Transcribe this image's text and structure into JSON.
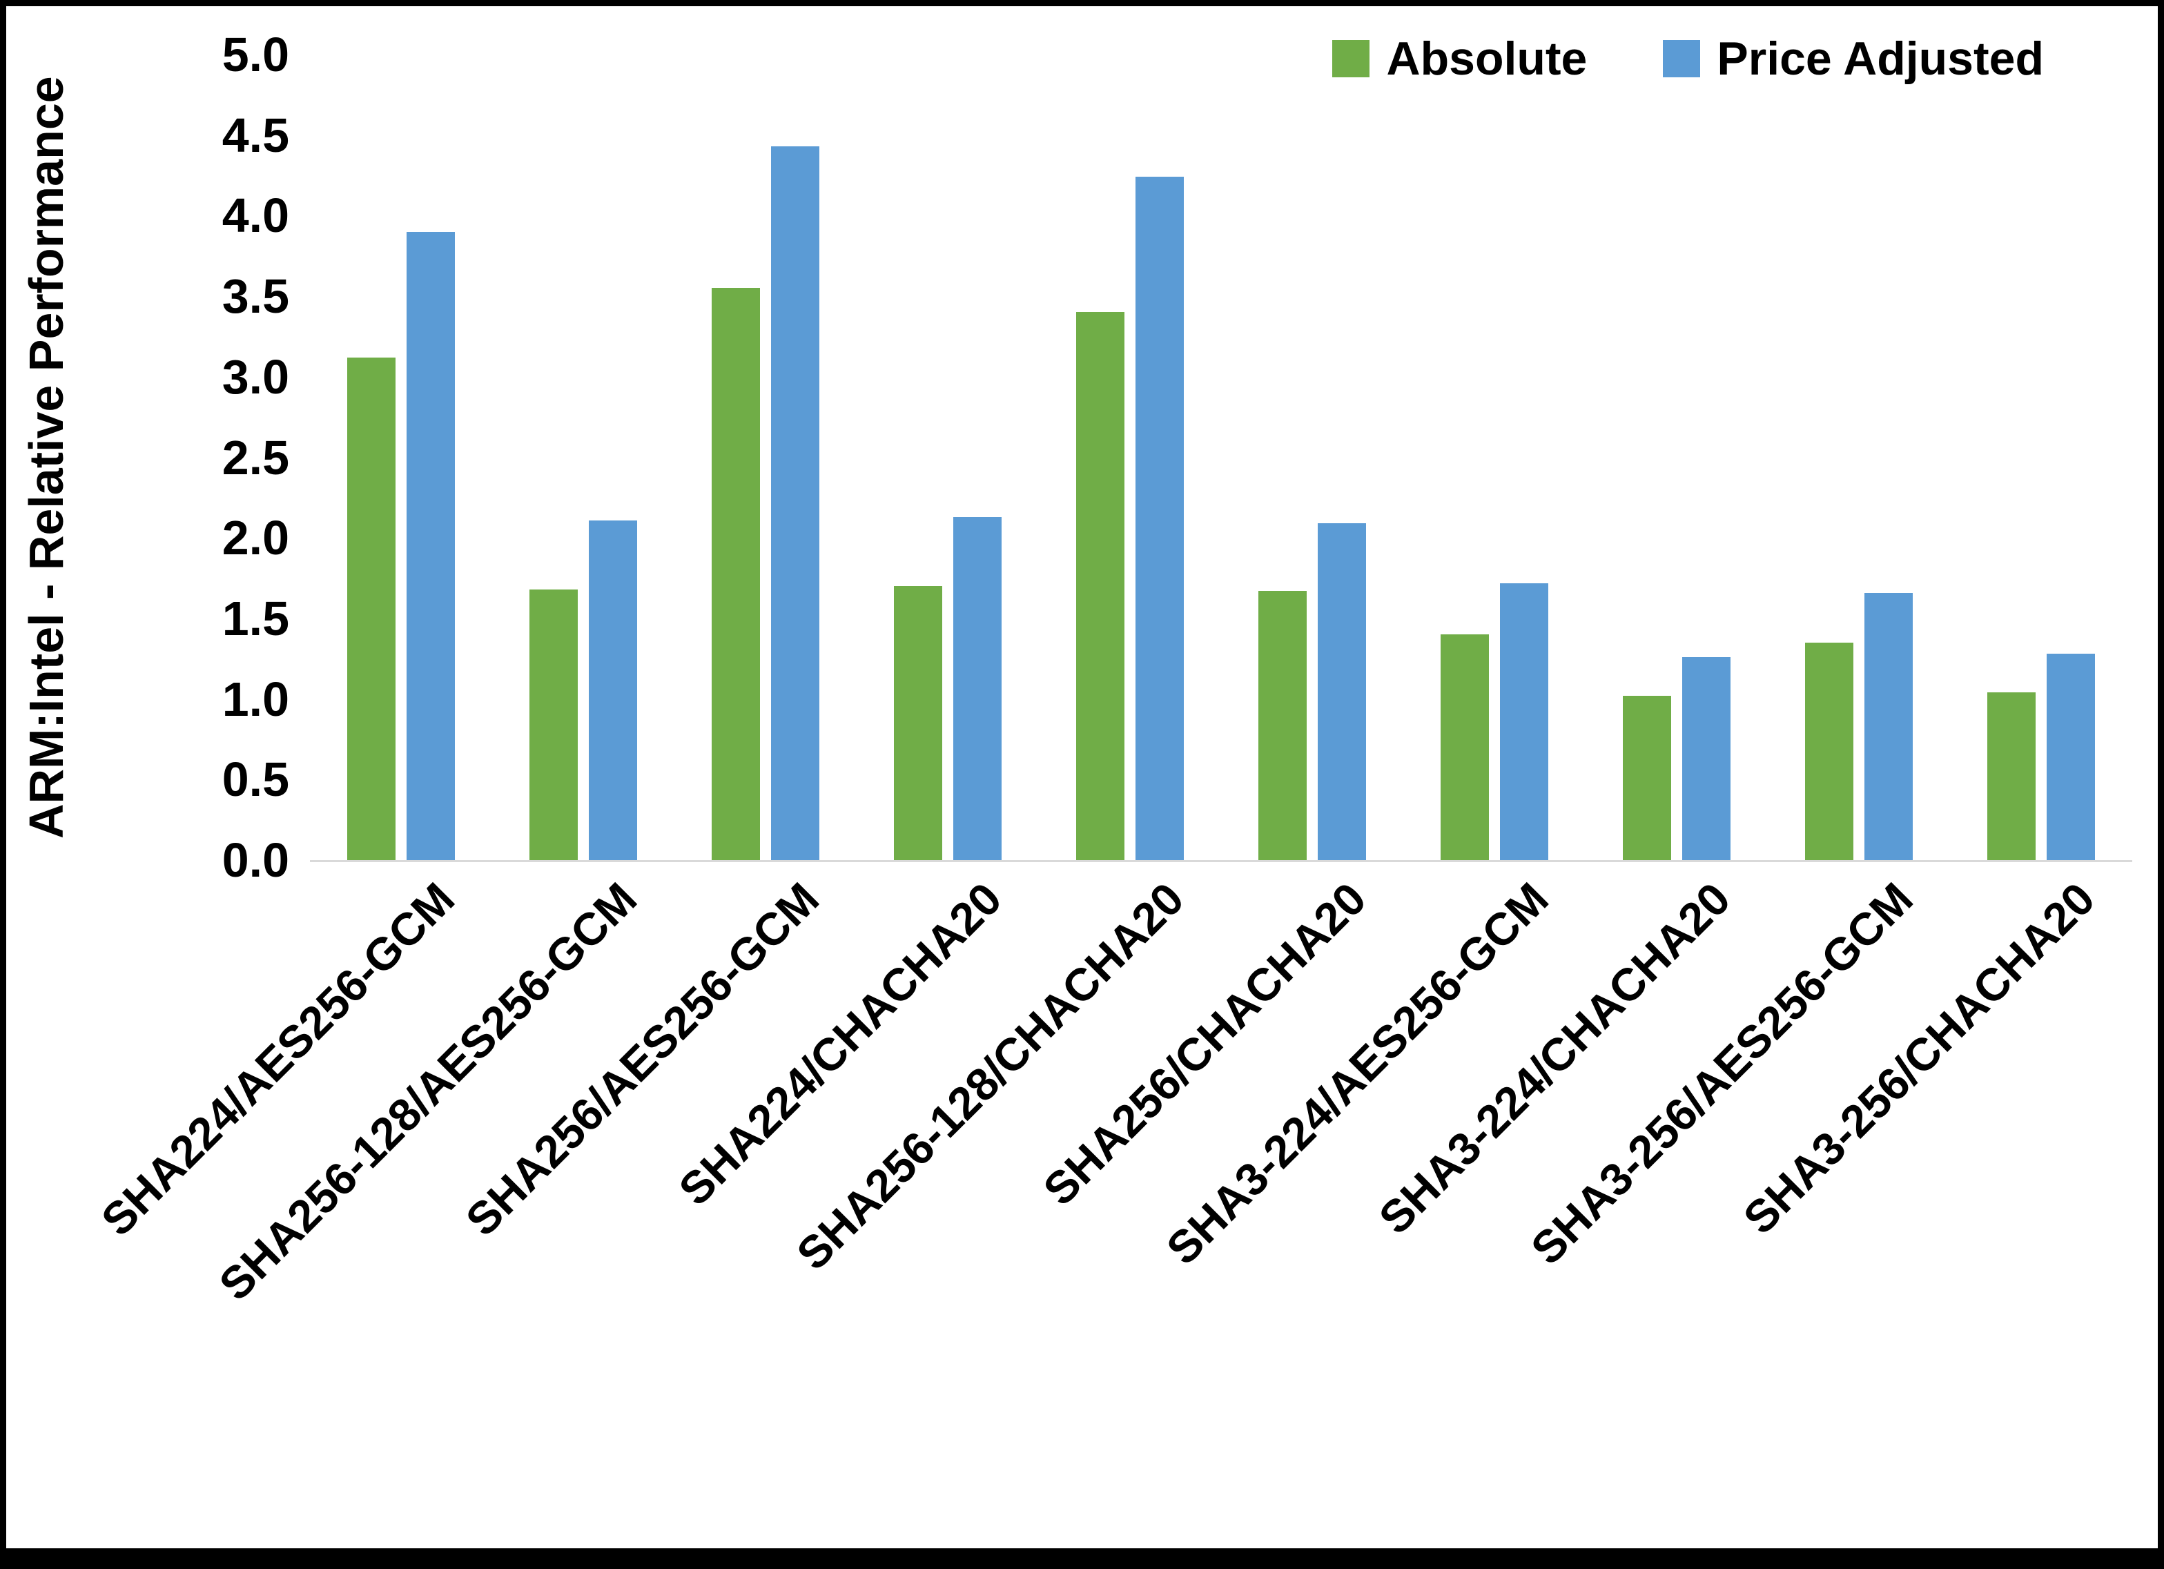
{
  "chart_data": {
    "type": "bar",
    "title": "",
    "xlabel": "",
    "ylabel": "ARM:Intel - Relative Performance",
    "ylim": [
      0,
      5
    ],
    "ytick_step": 0.5,
    "ytick_labels": [
      "0.0",
      "0.5",
      "1.0",
      "1.5",
      "2.0",
      "2.5",
      "3.0",
      "3.5",
      "4.0",
      "4.5",
      "5.0"
    ],
    "grid": false,
    "legend_position": "top-right",
    "categories": [
      "SHA224/AES256-GCM",
      "SHA256-128/AES256-GCM",
      "SHA256/AES256-GCM",
      "SHA224/CHACHA20",
      "SHA256-128/CHACHA20",
      "SHA256/CHACHA20",
      "SHA3-224/AES256-GCM",
      "SHA3-224/CHACHA20",
      "SHA3-256/AES256-GCM",
      "SHA3-256/CHACHA20"
    ],
    "series": [
      {
        "name": "Absolute",
        "color": "#70AD47",
        "values": [
          3.12,
          1.68,
          3.55,
          1.7,
          3.4,
          1.67,
          1.4,
          1.02,
          1.35,
          1.04
        ]
      },
      {
        "name": "Price Adjusted",
        "color": "#5B9BD5",
        "values": [
          3.9,
          2.11,
          4.43,
          2.13,
          4.24,
          2.09,
          1.72,
          1.26,
          1.66,
          1.28
        ]
      }
    ],
    "baseline_color": "#d9d9d9"
  }
}
